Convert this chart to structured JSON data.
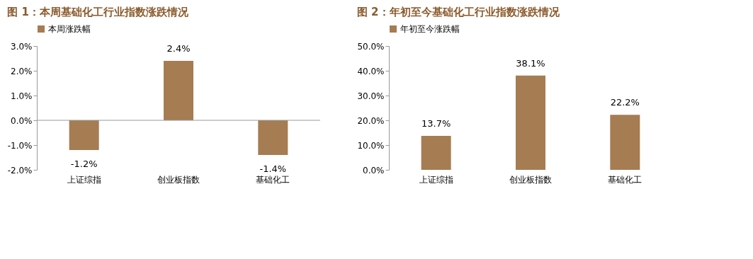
{
  "chart_data": [
    {
      "type": "bar",
      "title": "图 1：本周基础化工行业指数涨跌情况",
      "categories": [
        "上证综指",
        "创业板指数",
        "基础化工"
      ],
      "series": [
        {
          "name": "本周涨跌幅",
          "color": "#a67c52",
          "values": [
            -1.2,
            2.4,
            -1.4
          ]
        }
      ],
      "value_labels": [
        "-1.2%",
        "2.4%",
        "-1.4%"
      ],
      "ylim": [
        -2,
        3
      ],
      "yticks": [
        {
          "value": -2,
          "label": "-2.0%"
        },
        {
          "value": -1,
          "label": "-1.0%"
        },
        {
          "value": 0,
          "label": "0.0%"
        },
        {
          "value": 1,
          "label": "1.0%"
        },
        {
          "value": 2,
          "label": "2.0%"
        },
        {
          "value": 3,
          "label": "3.0%"
        }
      ],
      "ref_lines": [
        {
          "axis": "y",
          "value": 0,
          "color": "#999999"
        }
      ],
      "legend": "top",
      "grid": false
    },
    {
      "type": "bar",
      "title": "图 2：年初至今基础化工行业指数涨跌情况",
      "categories": [
        "上证综指",
        "创业板指数",
        "基础化工"
      ],
      "series": [
        {
          "name": "年初至今涨跌幅",
          "color": "#a67c52",
          "values": [
            13.7,
            38.1,
            22.2
          ]
        }
      ],
      "value_labels": [
        "13.7%",
        "38.1%",
        "22.2%"
      ],
      "ylim": [
        0,
        50
      ],
      "yticks": [
        {
          "value": 0,
          "label": "0.0%"
        },
        {
          "value": 10,
          "label": "10.0%"
        },
        {
          "value": 20,
          "label": "20.0%"
        },
        {
          "value": 30,
          "label": "30.0%"
        },
        {
          "value": 40,
          "label": "40.0%"
        },
        {
          "value": 50,
          "label": "50.0%"
        }
      ],
      "legend": "top",
      "grid": false
    }
  ]
}
